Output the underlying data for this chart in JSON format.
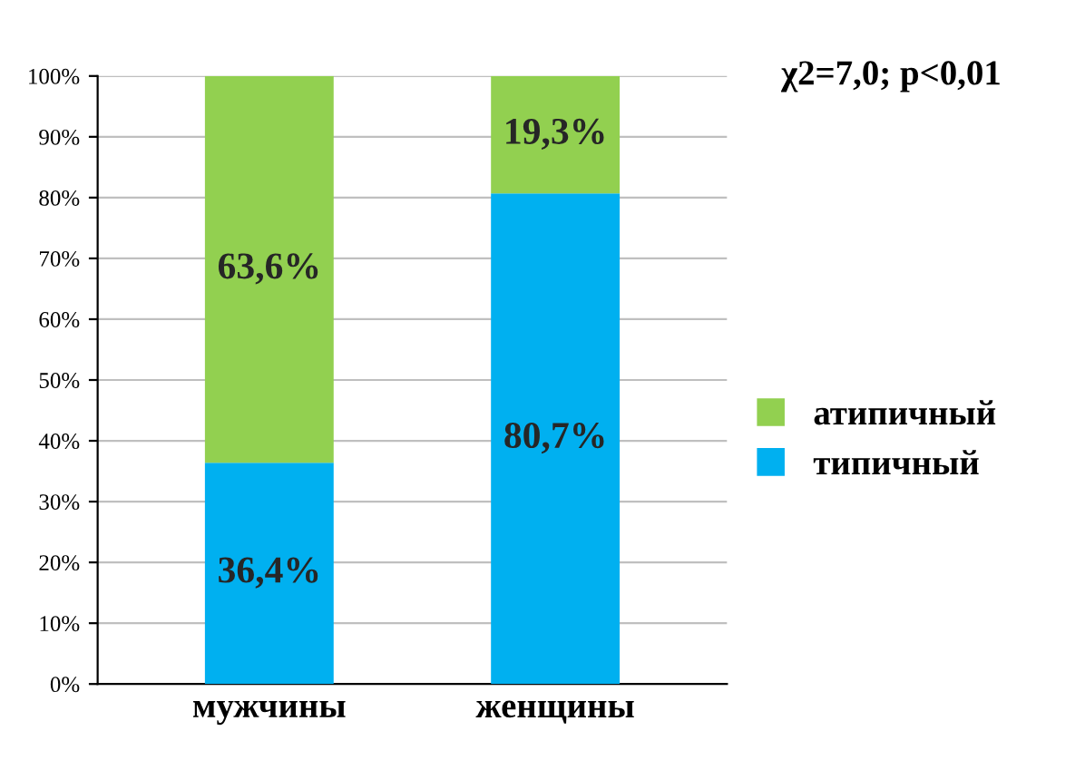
{
  "chart_data": {
    "type": "bar",
    "stacked": true,
    "categories": [
      "мужчины",
      "женщины"
    ],
    "series": [
      {
        "name": "типичный",
        "color": "#00b0f0",
        "values": [
          36.4,
          80.7
        ],
        "value_labels": [
          "36,4%",
          "80,7%"
        ]
      },
      {
        "name": "атипичный",
        "color": "#92d050",
        "values": [
          63.6,
          19.3
        ],
        "value_labels": [
          "63,6%",
          "19,3%"
        ]
      }
    ],
    "ylim": [
      0,
      100
    ],
    "yticks": [
      {
        "value": 0,
        "label": "0%"
      },
      {
        "value": 10,
        "label": "10%"
      },
      {
        "value": 20,
        "label": "20%"
      },
      {
        "value": 30,
        "label": "30%"
      },
      {
        "value": 40,
        "label": "40%"
      },
      {
        "value": 50,
        "label": "50%"
      },
      {
        "value": 60,
        "label": "60%"
      },
      {
        "value": 70,
        "label": "70%"
      },
      {
        "value": 80,
        "label": "80%"
      },
      {
        "value": 90,
        "label": "90%"
      },
      {
        "value": 100,
        "label": "100%"
      }
    ],
    "grid": "y",
    "legend": "right",
    "annotations": [
      "χ2=7,0; p<0,01"
    ]
  }
}
